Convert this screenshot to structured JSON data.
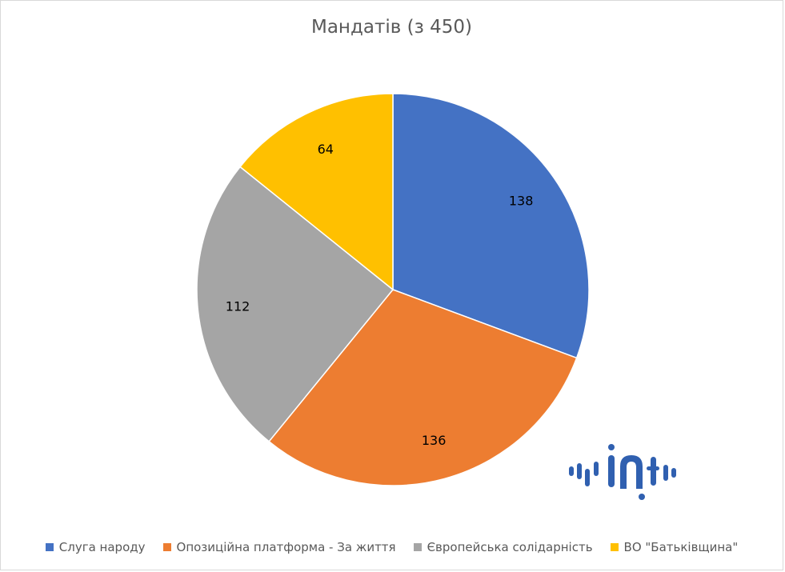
{
  "chart_data": {
    "type": "pie",
    "title": "Мандатів (з 450)",
    "series": [
      {
        "label": "Слуга народу",
        "value": 138,
        "color": "#4472C4"
      },
      {
        "label": "Опозиційна платформа - За життя",
        "value": 136,
        "color": "#ED7D31"
      },
      {
        "label": "Європейська солідарність",
        "value": 112,
        "color": "#A5A5A5"
      },
      {
        "label": "ВО \"Батьківщина\"",
        "value": 64,
        "color": "#FFC000"
      }
    ],
    "legend_position": "bottom"
  },
  "logo": {
    "icon": "waveform-logo-icon",
    "color": "#3060B0"
  }
}
